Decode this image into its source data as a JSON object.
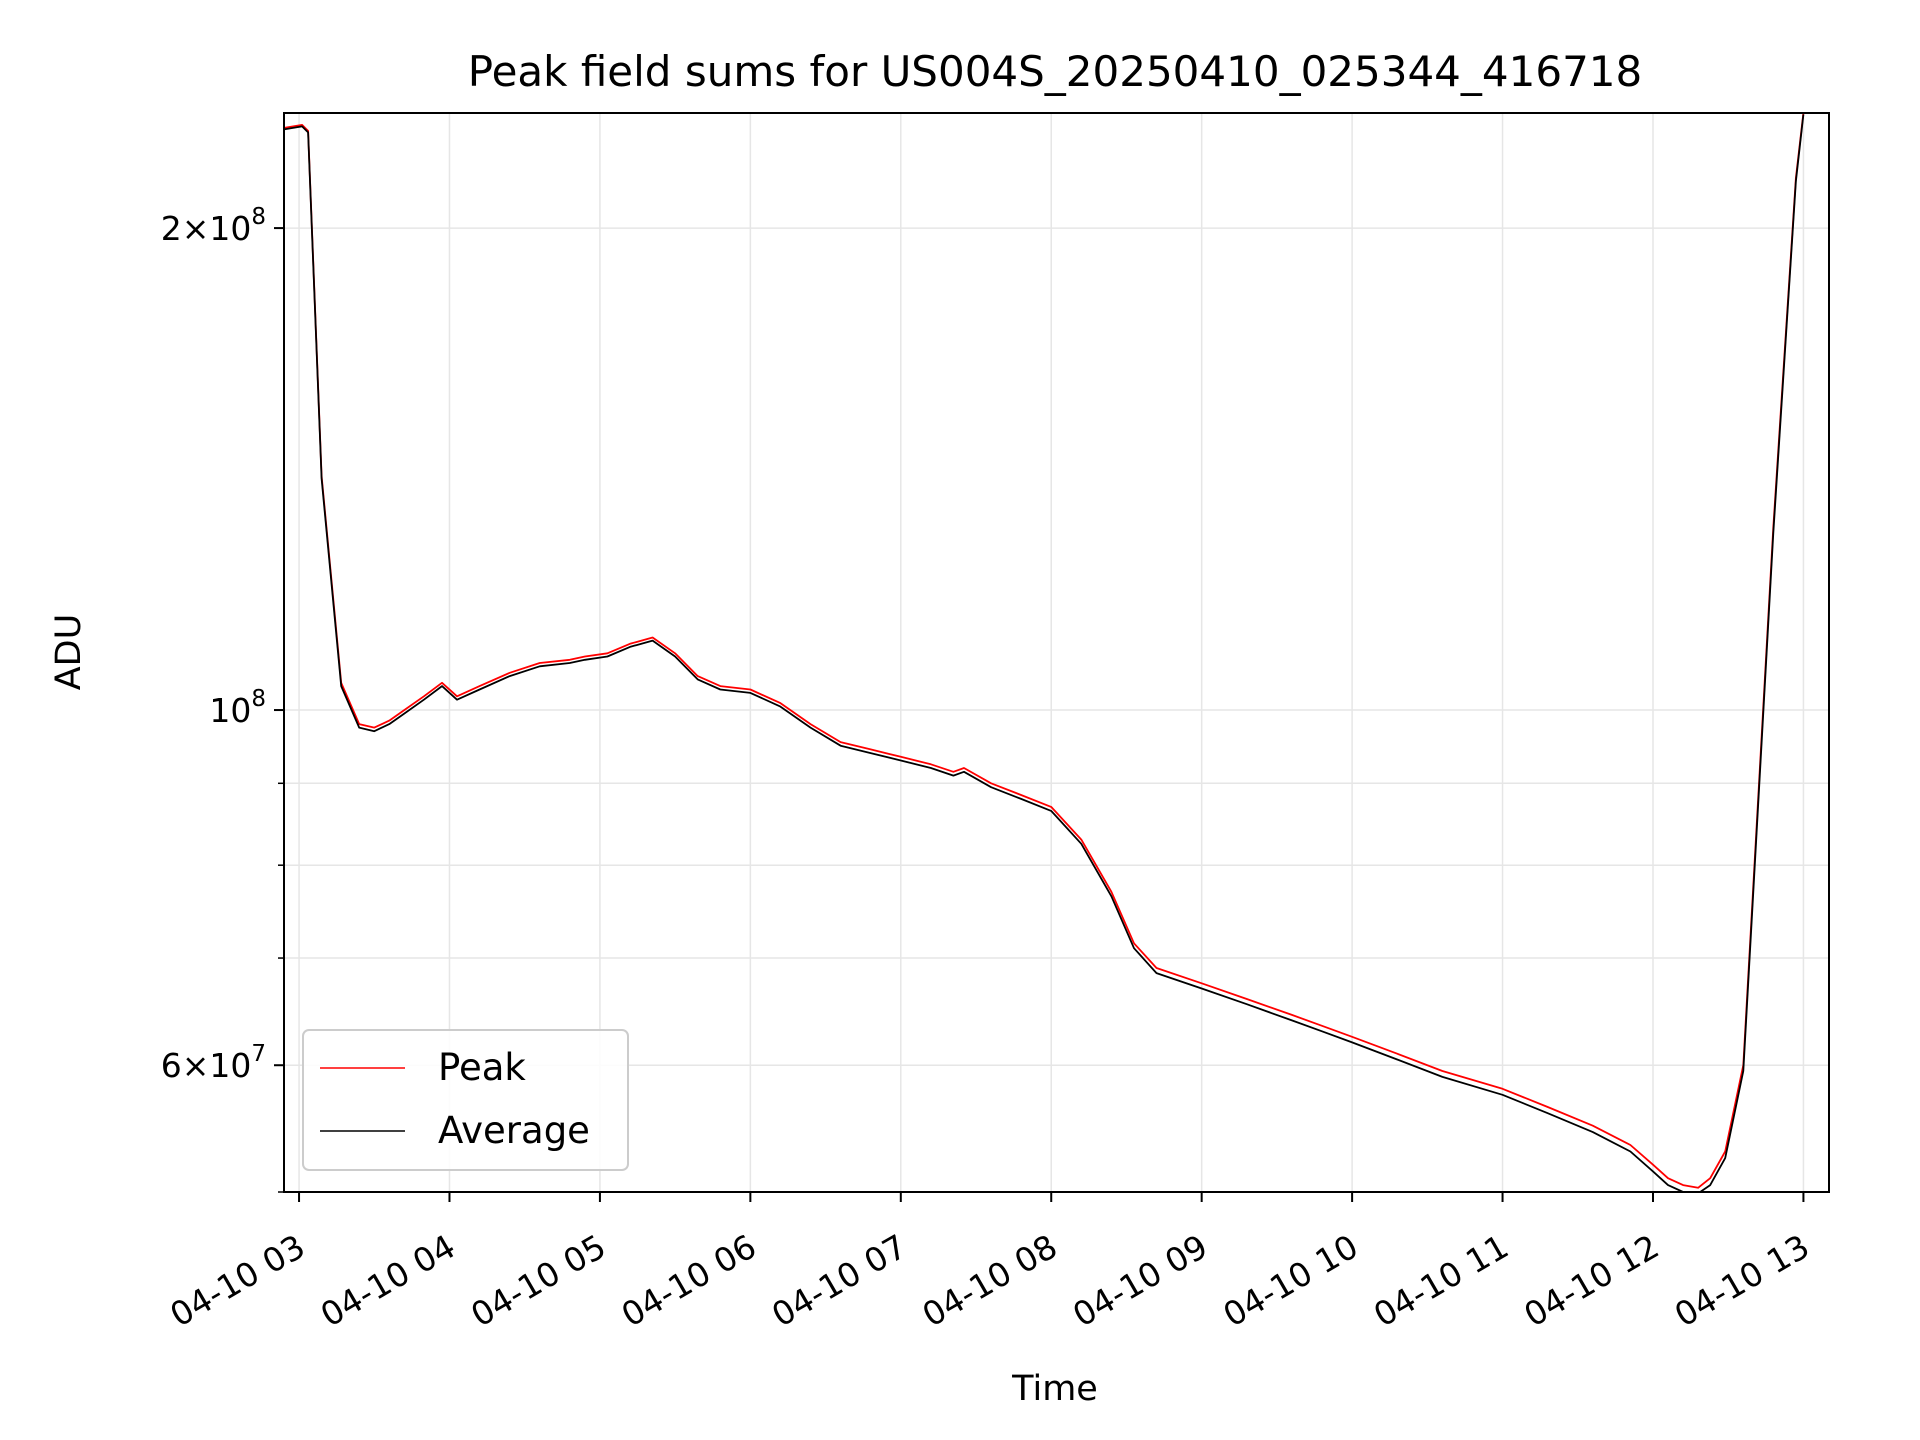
{
  "chart_data": {
    "type": "line",
    "title": "Peak field sums for US004S_20250410_025344_416718",
    "xlabel": "Time",
    "ylabel": "ADU",
    "yscale": "log",
    "grid": true,
    "legend_position": "lower-left",
    "x_tick_labels": [
      "04-10 03",
      "04-10 04",
      "04-10 05",
      "04-10 06",
      "04-10 07",
      "04-10 08",
      "04-10 09",
      "04-10 10",
      "04-10 11",
      "04-10 12",
      "04-10 13"
    ],
    "x_ticks_hours": [
      3,
      4,
      5,
      6,
      7,
      8,
      9,
      10,
      11,
      12,
      13
    ],
    "xlim_hours": [
      2.9,
      13.17
    ],
    "ylim": [
      50000000,
      236000000
    ],
    "y_major_ticks": [
      {
        "value": 200000000,
        "mantissa": "2",
        "exponent": "8"
      },
      {
        "value": 100000000,
        "mantissa": "",
        "exponent": "8"
      },
      {
        "value": 60000000,
        "mantissa": "6",
        "exponent": "7"
      }
    ],
    "y_minor_ticks": [
      90000000,
      80000000,
      70000000,
      50000000
    ],
    "series": [
      {
        "name": "Peak",
        "color": "#ff0000",
        "x_hours": [
          2.9,
          3.02,
          3.06,
          3.15,
          3.28,
          3.4,
          3.5,
          3.6,
          3.7,
          3.83,
          3.95,
          4.05,
          4.2,
          4.4,
          4.6,
          4.8,
          4.9,
          5.05,
          5.2,
          5.35,
          5.5,
          5.65,
          5.8,
          6.0,
          6.2,
          6.4,
          6.6,
          6.8,
          7.0,
          7.2,
          7.35,
          7.42,
          7.6,
          7.8,
          8.0,
          8.2,
          8.4,
          8.55,
          8.7,
          9.0,
          9.3,
          9.6,
          9.8,
          10.0,
          10.3,
          10.6,
          11.0,
          11.3,
          11.6,
          11.85,
          12.0,
          12.1,
          12.2,
          12.3,
          12.38,
          12.48,
          12.6,
          12.8,
          12.95,
          13.0
        ],
        "values": [
          231000000,
          232000000,
          230000000,
          140000000,
          104000000,
          98000000,
          97500000,
          98500000,
          100000000,
          102000000,
          104000000,
          102000000,
          103500000,
          105500000,
          107000000,
          107500000,
          108000000,
          108500000,
          110000000,
          111000000,
          108500000,
          105000000,
          103500000,
          103000000,
          101000000,
          98000000,
          95500000,
          94500000,
          93500000,
          92500000,
          91500000,
          92000000,
          90000000,
          88500000,
          87000000,
          83000000,
          77000000,
          71500000,
          69000000,
          67500000,
          66000000,
          64500000,
          63500000,
          62500000,
          61000000,
          59500000,
          58000000,
          56500000,
          55000000,
          53500000,
          52000000,
          51000000,
          50500000,
          50300000,
          51000000,
          53000000,
          60000000,
          130000000,
          215000000,
          236000000
        ]
      },
      {
        "name": "Average",
        "color": "#000000",
        "x_hours": [
          2.9,
          3.02,
          3.06,
          3.15,
          3.28,
          3.4,
          3.5,
          3.6,
          3.7,
          3.83,
          3.95,
          4.05,
          4.2,
          4.4,
          4.6,
          4.8,
          4.9,
          5.05,
          5.2,
          5.35,
          5.5,
          5.65,
          5.8,
          6.0,
          6.2,
          6.4,
          6.6,
          6.8,
          7.0,
          7.2,
          7.35,
          7.42,
          7.6,
          7.8,
          8.0,
          8.2,
          8.4,
          8.55,
          8.7,
          9.0,
          9.3,
          9.6,
          9.8,
          10.0,
          10.3,
          10.6,
          11.0,
          11.3,
          11.6,
          11.85,
          12.0,
          12.1,
          12.2,
          12.3,
          12.38,
          12.48,
          12.6,
          12.8,
          12.95,
          13.0
        ],
        "values": [
          230500000,
          231500000,
          229500000,
          139500000,
          103500000,
          97500000,
          97000000,
          98000000,
          99500000,
          101500000,
          103500000,
          101500000,
          103000000,
          105000000,
          106500000,
          107000000,
          107500000,
          108000000,
          109500000,
          110500000,
          108000000,
          104500000,
          103000000,
          102500000,
          100500000,
          97500000,
          95000000,
          94000000,
          93000000,
          92000000,
          91000000,
          91500000,
          89500000,
          88000000,
          86500000,
          82500000,
          76500000,
          71000000,
          68500000,
          67000000,
          65500000,
          64000000,
          63000000,
          62000000,
          60500000,
          59000000,
          57500000,
          56000000,
          54500000,
          53000000,
          51500000,
          50500000,
          50000000,
          49900000,
          50500000,
          52500000,
          59500000,
          129000000,
          214000000,
          235500000
        ]
      }
    ]
  }
}
